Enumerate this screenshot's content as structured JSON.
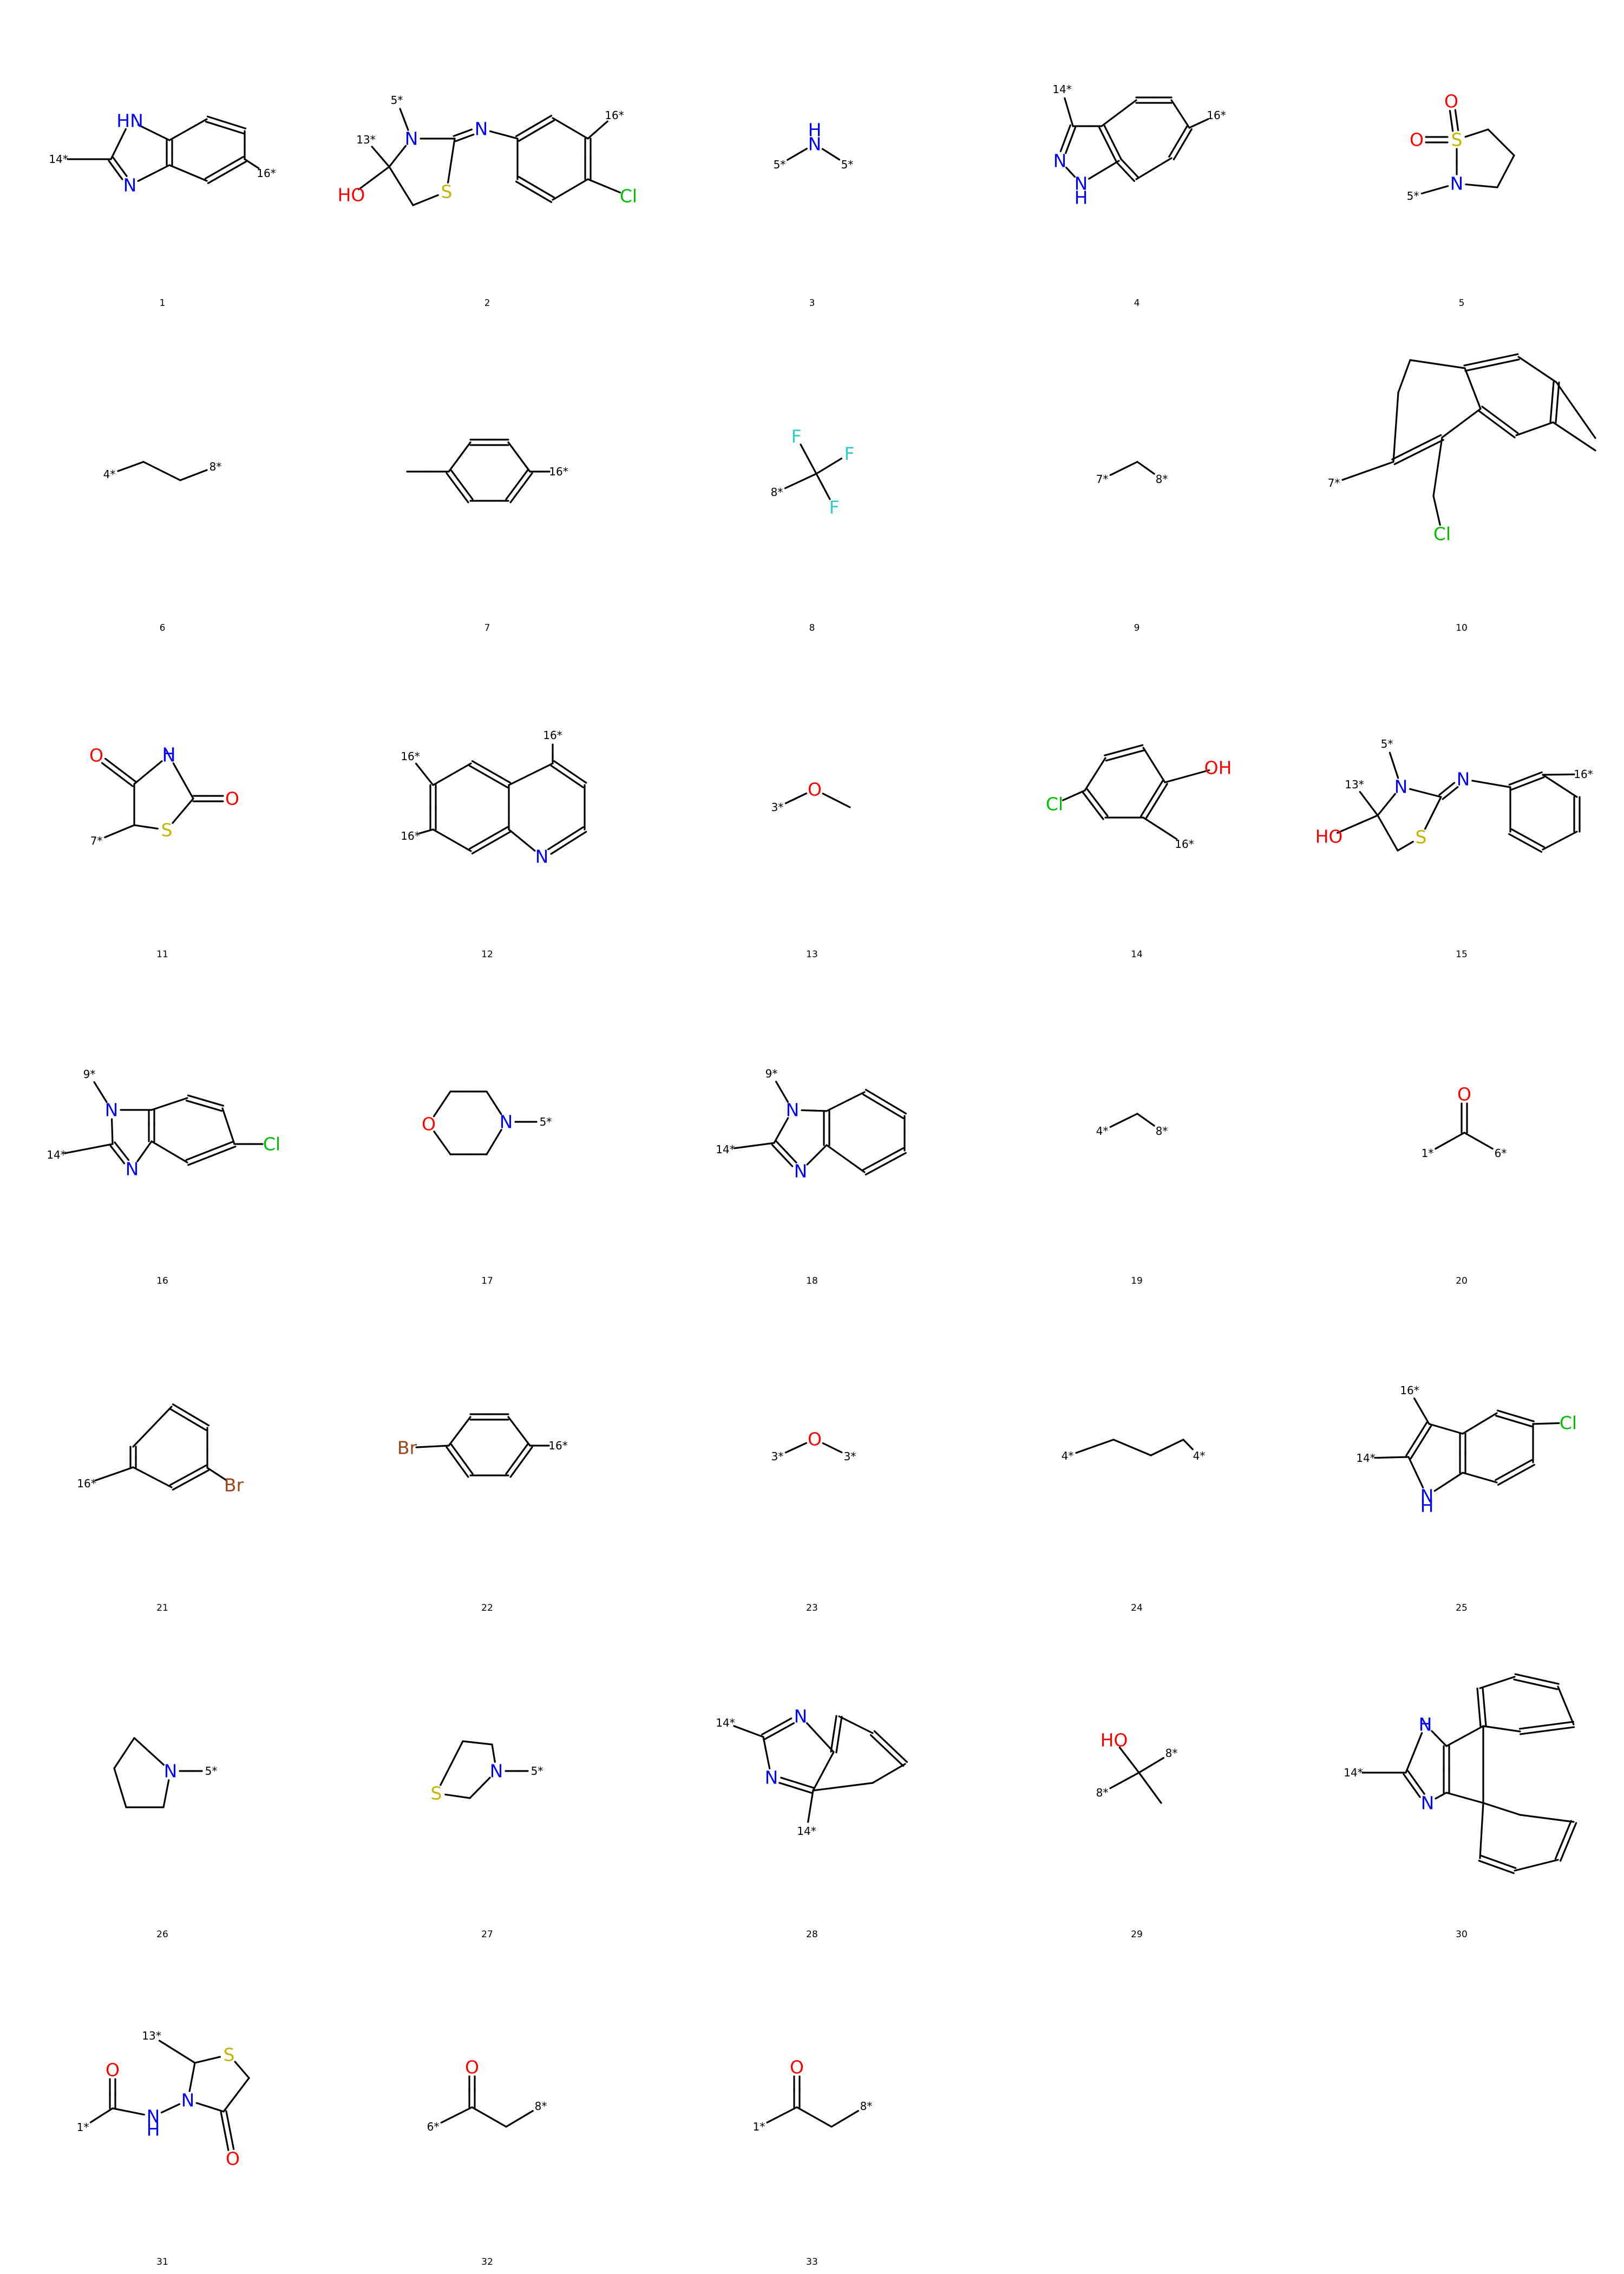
{
  "colors": {
    "C": "#000000",
    "N": "#0000ff",
    "O": "#ff0000",
    "S": "#c8b400",
    "Cl": "#00c000",
    "F": "#33cccc",
    "Br": "#99441a"
  },
  "molecules": [
    {
      "label": "1",
      "atoms": [
        "HN",
        "N",
        "14*",
        "16*"
      ]
    },
    {
      "label": "2",
      "atoms": [
        "5*",
        "13*",
        "N",
        "N",
        "HO",
        "S",
        "16*",
        "Cl"
      ]
    },
    {
      "label": "3",
      "atoms": [
        "H",
        "N",
        "5*",
        "5*"
      ]
    },
    {
      "label": "4",
      "atoms": [
        "14*",
        "16*",
        "N",
        "N",
        "H"
      ]
    },
    {
      "label": "5",
      "atoms": [
        "O",
        "O",
        "S",
        "N",
        "5*"
      ]
    },
    {
      "label": "6",
      "atoms": [
        "4*",
        "8*"
      ]
    },
    {
      "label": "7",
      "atoms": [
        "16*"
      ]
    },
    {
      "label": "8",
      "atoms": [
        "F",
        "F",
        "F",
        "8*"
      ]
    },
    {
      "label": "9",
      "atoms": [
        "7*",
        "8*"
      ]
    },
    {
      "label": "10",
      "atoms": [
        "7*",
        "Cl"
      ]
    },
    {
      "label": "11",
      "atoms": [
        "O",
        "H",
        "N",
        "O",
        "S",
        "7*"
      ]
    },
    {
      "label": "12",
      "atoms": [
        "16*",
        "16*",
        "16*",
        "N"
      ]
    },
    {
      "label": "13",
      "atoms": [
        "3*",
        "O"
      ]
    },
    {
      "label": "14",
      "atoms": [
        "OH",
        "Cl",
        "16*"
      ]
    },
    {
      "label": "15",
      "atoms": [
        "5*",
        "13*",
        "N",
        "N",
        "16*",
        "HO",
        "S"
      ]
    },
    {
      "label": "16",
      "atoms": [
        "9*",
        "N",
        "14*",
        "N",
        "Cl"
      ]
    },
    {
      "label": "17",
      "atoms": [
        "O",
        "N",
        "5*"
      ]
    },
    {
      "label": "18",
      "atoms": [
        "9*",
        "N",
        "14*",
        "N"
      ]
    },
    {
      "label": "19",
      "atoms": [
        "4*",
        "8*"
      ]
    },
    {
      "label": "20",
      "atoms": [
        "O",
        "1*",
        "6*"
      ]
    },
    {
      "label": "21",
      "atoms": [
        "16*",
        "Br"
      ]
    },
    {
      "label": "22",
      "atoms": [
        "Br",
        "16*"
      ]
    },
    {
      "label": "23",
      "atoms": [
        "O",
        "3*",
        "3*"
      ]
    },
    {
      "label": "24",
      "atoms": [
        "4*",
        "4*"
      ]
    },
    {
      "label": "25",
      "atoms": [
        "16*",
        "Cl",
        "14*",
        "N",
        "H"
      ]
    },
    {
      "label": "26",
      "atoms": [
        "N",
        "5*"
      ]
    },
    {
      "label": "27",
      "atoms": [
        "N",
        "5*",
        "S"
      ]
    },
    {
      "label": "28",
      "atoms": [
        "14*",
        "N",
        "N",
        "14*"
      ]
    },
    {
      "label": "29",
      "atoms": [
        "HO",
        "8*",
        "8*"
      ]
    },
    {
      "label": "30",
      "atoms": [
        "H",
        "N",
        "14*",
        "N"
      ]
    },
    {
      "label": "31",
      "atoms": [
        "13*",
        "S",
        "O",
        "N",
        "1*",
        "N",
        "H",
        "O"
      ]
    },
    {
      "label": "32",
      "atoms": [
        "O",
        "6*",
        "8*"
      ]
    },
    {
      "label": "33",
      "atoms": [
        "O",
        "1*",
        "8*"
      ]
    }
  ]
}
